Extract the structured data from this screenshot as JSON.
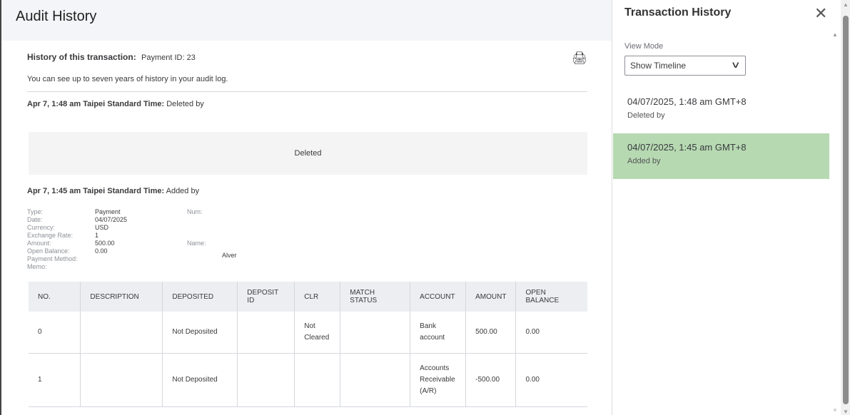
{
  "audit": {
    "title": "Audit History",
    "history_label": "History of this transaction:",
    "history_value": "Payment ID: 23",
    "note": "You can see up to seven years of history in your audit log.",
    "event1": {
      "time": "Apr 7, 1:48 am Taipei Standard Time:",
      "action": "Deleted by",
      "box": "Deleted"
    },
    "event2": {
      "time": "Apr 7, 1:45 am Taipei Standard Time:",
      "action": "Added by"
    },
    "details": {
      "labels": [
        "Type:",
        "Date:",
        "Currency:",
        "Exchange Rate:",
        "Amount:",
        "Open Balance:",
        "Payment Method:",
        "Memo:"
      ],
      "values": [
        "Payment",
        "04/07/2025",
        "USD",
        "1",
        "500.00",
        "0.00",
        "",
        ""
      ],
      "num_label": "Num:",
      "name_label": "Name:",
      "name_value": "Alver"
    },
    "table": {
      "headers": [
        "NO.",
        "DESCRIPTION",
        "DEPOSITED",
        "DEPOSIT ID",
        "CLR",
        "MATCH STATUS",
        "ACCOUNT",
        "AMOUNT",
        "OPEN BALANCE"
      ],
      "rows": [
        [
          "0",
          "",
          "Not Deposited",
          "",
          "Not Cleared",
          "",
          "Bank account",
          "500.00",
          "0.00"
        ],
        [
          "1",
          "",
          "Not Deposited",
          "",
          "",
          "",
          "Accounts Receivable (A/R)",
          "-500.00",
          "0.00"
        ]
      ]
    }
  },
  "panel": {
    "title": "Transaction History",
    "view_mode_label": "View Mode",
    "view_mode_value": "Show Timeline",
    "items": [
      {
        "date": "04/07/2025, 1:48 am GMT+8",
        "action": "Deleted by",
        "selected": false
      },
      {
        "date": "04/07/2025, 1:45 am GMT+8",
        "action": "Added by",
        "selected": true
      }
    ],
    "selected_color": "#b6d9b2"
  }
}
